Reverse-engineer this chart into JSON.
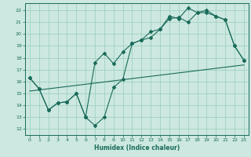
{
  "xlabel": "Humidex (Indice chaleur)",
  "bg_color": "#cce8e0",
  "grid_color": "#99ccbb",
  "line_color": "#1a6b5a",
  "xlim": [
    -0.5,
    23.5
  ],
  "ylim": [
    11.5,
    22.6
  ],
  "yticks": [
    12,
    13,
    14,
    15,
    16,
    17,
    18,
    19,
    20,
    21,
    22
  ],
  "xticks": [
    0,
    1,
    2,
    3,
    4,
    5,
    6,
    7,
    8,
    9,
    10,
    11,
    12,
    13,
    14,
    15,
    16,
    17,
    18,
    19,
    20,
    21,
    22,
    23
  ],
  "line1_x": [
    0,
    1,
    2,
    3,
    4,
    5,
    6,
    7,
    8,
    9,
    10,
    11,
    12,
    13,
    14,
    15,
    16,
    17,
    18,
    19,
    20,
    21,
    22,
    23
  ],
  "line1_y": [
    16.3,
    15.4,
    13.6,
    14.2,
    14.3,
    15.0,
    13.0,
    12.3,
    13.0,
    15.5,
    16.2,
    19.2,
    19.5,
    20.2,
    20.4,
    21.3,
    21.4,
    21.0,
    21.8,
    21.8,
    21.5,
    21.2,
    19.0,
    17.8
  ],
  "line2_x": [
    0,
    1,
    2,
    3,
    4,
    5,
    6,
    7,
    8,
    9,
    10,
    11,
    12,
    13,
    14,
    15,
    16,
    17,
    18,
    19,
    20,
    21,
    22,
    23
  ],
  "line2_y": [
    16.3,
    15.4,
    13.6,
    14.2,
    14.3,
    15.0,
    13.0,
    17.6,
    18.4,
    17.5,
    18.5,
    19.2,
    19.5,
    19.7,
    20.4,
    21.5,
    21.3,
    22.2,
    21.8,
    22.0,
    21.5,
    21.2,
    19.0,
    17.8
  ],
  "line3_x": [
    0,
    23
  ],
  "line3_y": [
    15.2,
    17.4
  ]
}
